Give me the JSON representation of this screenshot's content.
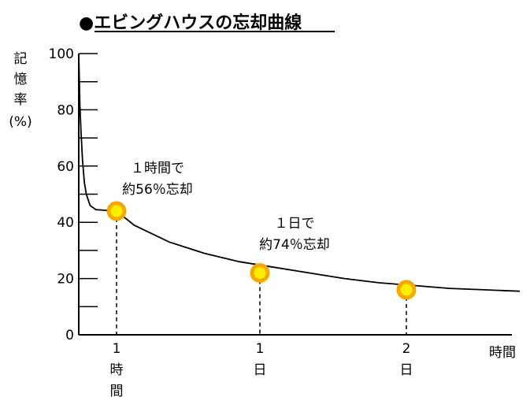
{
  "chart_data": {
    "type": "line",
    "title": "●エビングハウスの忘却曲線",
    "ylabel_chars": [
      "記",
      "憶",
      "率",
      "(%)"
    ],
    "xlabel": "時間",
    "ylim": [
      0,
      100
    ],
    "yticks": [
      "0",
      "20",
      "40",
      "60",
      "80",
      "100"
    ],
    "xticks": [
      {
        "line1": "1",
        "line2": "時",
        "line3": "間"
      },
      {
        "line1": "1",
        "line2": "日",
        "line3": ""
      },
      {
        "line1": "2",
        "line2": "日",
        "line3": ""
      }
    ],
    "series": [
      {
        "points": [
          {
            "x": 0,
            "y": 100
          },
          {
            "x": 0.03,
            "y": 82
          },
          {
            "x": 0.06,
            "y": 72
          },
          {
            "x": 0.1,
            "y": 62
          },
          {
            "x": 0.15,
            "y": 54
          },
          {
            "x": 0.2,
            "y": 50
          },
          {
            "x": 0.3,
            "y": 46
          },
          {
            "x": 0.45,
            "y": 44.5
          },
          {
            "x": 1,
            "y": 44
          },
          {
            "x": 2,
            "y": 39
          },
          {
            "x": 4,
            "y": 33
          },
          {
            "x": 6,
            "y": 29
          },
          {
            "x": 8,
            "y": 26
          },
          {
            "x": 10,
            "y": 24
          },
          {
            "x": 12,
            "y": 22
          },
          {
            "x": 14,
            "y": 20
          },
          {
            "x": 16,
            "y": 18.5
          },
          {
            "x": 18,
            "y": 17.5
          },
          {
            "x": 20,
            "y": 16.5
          },
          {
            "x": 22,
            "y": 16
          },
          {
            "x": 24,
            "y": 15.5
          }
        ]
      }
    ],
    "markers": [
      {
        "x": 1,
        "y": 44,
        "label_line1": "１時間で",
        "label_line2": "約56％忘却"
      },
      {
        "x": 2,
        "y": 22,
        "label_line1": "１日で",
        "label_line2": "約74％忘却"
      },
      {
        "x": 3,
        "y": 16,
        "label_line1": "",
        "label_line2": ""
      }
    ],
    "colors": {
      "line": "#000000",
      "marker_fill": "#ffee00",
      "marker_ring": "#f5a800"
    }
  }
}
